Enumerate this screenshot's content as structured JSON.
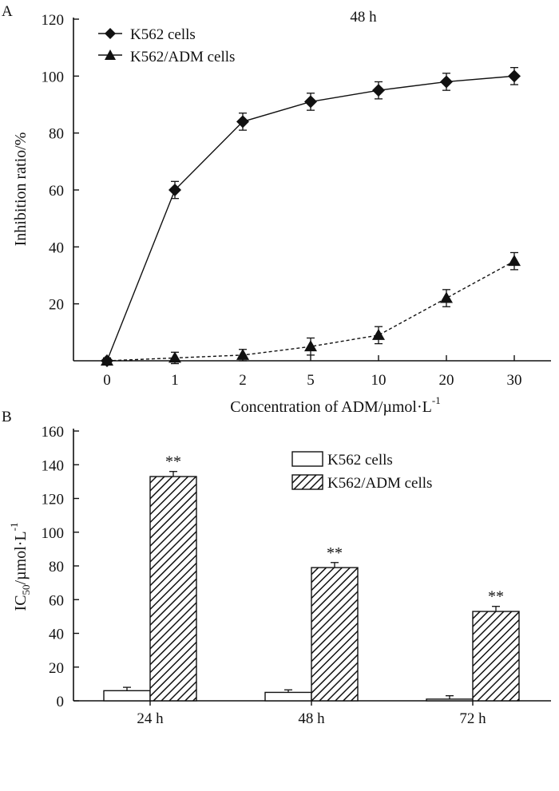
{
  "chart_data": [
    {
      "type": "line",
      "panel_label": "A",
      "title": "48 h",
      "xlabel": "Concentration of ADM/µmol·L",
      "xlabel_sup": "-1",
      "ylabel": "Inhibition ratio/%",
      "categories": [
        "0",
        "1",
        "2",
        "5",
        "10",
        "20",
        "30"
      ],
      "yticks": [
        "20",
        "40",
        "60",
        "80",
        "100",
        "120"
      ],
      "ylim": [
        0,
        120
      ],
      "legend_position": "top-left",
      "series": [
        {
          "name": "K562 cells",
          "marker": "diamond",
          "line_style": "solid",
          "values": [
            0,
            60,
            84,
            91,
            95,
            98,
            100
          ],
          "errors": [
            1,
            3,
            3,
            3,
            3,
            3,
            3
          ]
        },
        {
          "name": "K562/ADM cells",
          "marker": "triangle",
          "line_style": "dashed",
          "values": [
            0,
            1,
            2,
            5,
            9,
            22,
            35
          ],
          "errors": [
            1,
            2,
            2,
            3,
            3,
            3,
            3
          ]
        }
      ]
    },
    {
      "type": "bar",
      "panel_label": "B",
      "title": "",
      "xlabel": "",
      "ylabel_main": "IC",
      "ylabel_sub": "50",
      "ylabel_rest": "/µmol·L",
      "ylabel_sup": "-1",
      "categories": [
        "24 h",
        "48 h",
        "72 h"
      ],
      "yticks": [
        "0",
        "20",
        "40",
        "60",
        "80",
        "100",
        "120",
        "140",
        "160"
      ],
      "ylim": [
        0,
        160
      ],
      "legend_position": "top-right",
      "significance_mark": "**",
      "series": [
        {
          "name": "K562 cells",
          "fill": "white",
          "values": [
            6,
            5,
            1
          ],
          "errors": [
            2,
            1.5,
            2
          ]
        },
        {
          "name": "K562/ADM cells",
          "fill": "hatched",
          "values": [
            133,
            79,
            53
          ],
          "errors": [
            3,
            3,
            3
          ]
        }
      ]
    }
  ]
}
